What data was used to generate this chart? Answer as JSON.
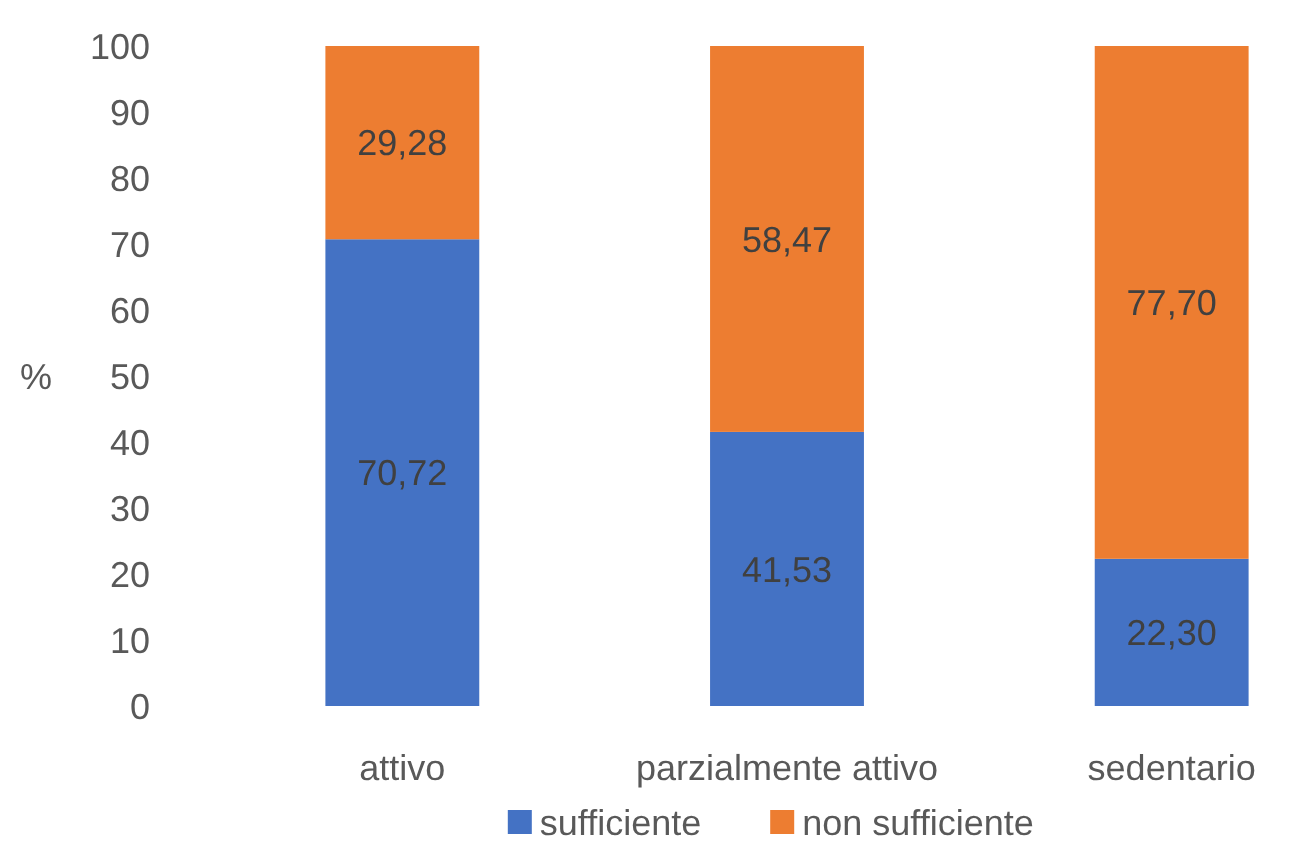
{
  "chart_data": {
    "type": "bar",
    "stacked": true,
    "ylabel": "%",
    "categories": [
      "attivo",
      "parzialmente attivo",
      "sedentario"
    ],
    "series": [
      {
        "name": "sufficiente",
        "color": "#4472c4",
        "values": [
          70.72,
          41.53,
          22.3
        ],
        "value_labels": [
          "70,72",
          "41,53",
          "22,30"
        ]
      },
      {
        "name": "non sufficiente",
        "color": "#ed7d31",
        "values": [
          29.28,
          58.47,
          77.7
        ],
        "value_labels": [
          "29,28",
          "58,47",
          "77,70"
        ]
      }
    ],
    "ylim": [
      0,
      100
    ],
    "yticks": [
      0,
      10,
      20,
      30,
      40,
      50,
      60,
      70,
      80,
      90,
      100
    ],
    "grid": false,
    "legend": "bottom"
  }
}
